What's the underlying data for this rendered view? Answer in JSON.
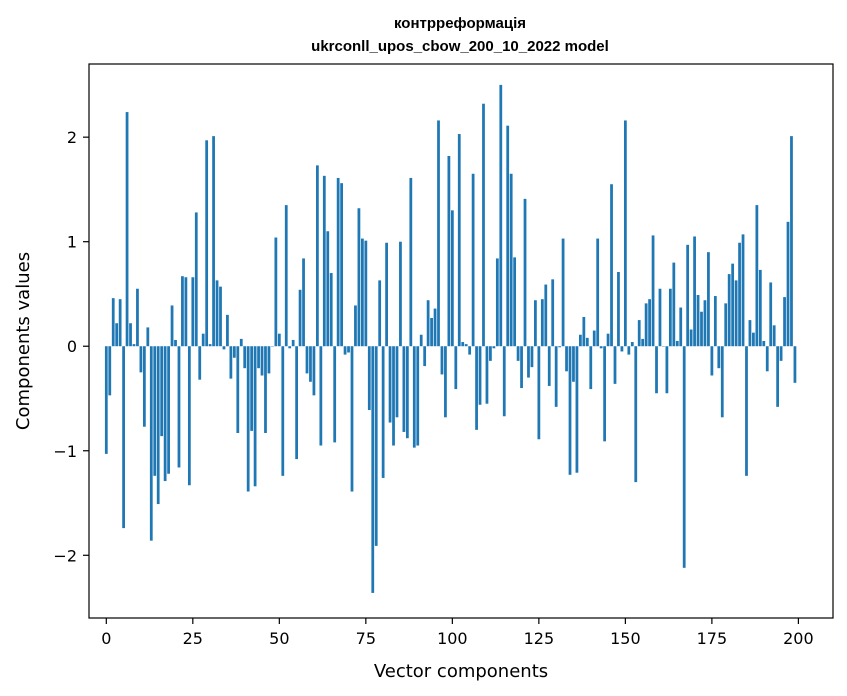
{
  "chart_data": {
    "type": "bar",
    "title": "контрреформація",
    "subtitle": "ukrconll_upos_cbow_200_10_2022 model",
    "xlabel": "Vector components",
    "ylabel": "Components values",
    "xlim": [
      -5,
      210
    ],
    "ylim": [
      -2.6,
      2.7
    ],
    "xticks": [
      0,
      25,
      50,
      75,
      100,
      125,
      150,
      175,
      200
    ],
    "xtick_labels": [
      "0",
      "25",
      "50",
      "75",
      "100",
      "125",
      "150",
      "175",
      "200"
    ],
    "yticks": [
      -2,
      -1,
      0,
      1,
      2
    ],
    "ytick_labels": [
      "−2",
      "−1",
      "0",
      "1",
      "2"
    ],
    "grid": false,
    "bar_color": "#1f77b4",
    "x": [
      0,
      1,
      2,
      3,
      4,
      5,
      6,
      7,
      8,
      9,
      10,
      11,
      12,
      13,
      14,
      15,
      16,
      17,
      18,
      19,
      20,
      21,
      22,
      23,
      24,
      25,
      26,
      27,
      28,
      29,
      30,
      31,
      32,
      33,
      34,
      35,
      36,
      37,
      38,
      39,
      40,
      41,
      42,
      43,
      44,
      45,
      46,
      47,
      48,
      49,
      50,
      51,
      52,
      53,
      54,
      55,
      56,
      57,
      58,
      59,
      60,
      61,
      62,
      63,
      64,
      65,
      66,
      67,
      68,
      69,
      70,
      71,
      72,
      73,
      74,
      75,
      76,
      77,
      78,
      79,
      80,
      81,
      82,
      83,
      84,
      85,
      86,
      87,
      88,
      89,
      90,
      91,
      92,
      93,
      94,
      95,
      96,
      97,
      98,
      99,
      100,
      101,
      102,
      103,
      104,
      105,
      106,
      107,
      108,
      109,
      110,
      111,
      112,
      113,
      114,
      115,
      116,
      117,
      118,
      119,
      120,
      121,
      122,
      123,
      124,
      125,
      126,
      127,
      128,
      129,
      130,
      131,
      132,
      133,
      134,
      135,
      136,
      137,
      138,
      139,
      140,
      141,
      142,
      143,
      144,
      145,
      146,
      147,
      148,
      149,
      150,
      151,
      152,
      153,
      154,
      155,
      156,
      157,
      158,
      159,
      160,
      161,
      162,
      163,
      164,
      165,
      166,
      167,
      168,
      169,
      170,
      171,
      172,
      173,
      174,
      175,
      176,
      177,
      178,
      179,
      180,
      181,
      182,
      183,
      184,
      185,
      186,
      187,
      188,
      189,
      190,
      191,
      192,
      193,
      194,
      195,
      196,
      197,
      198,
      199
    ],
    "values": [
      -1.03,
      -0.47,
      0.46,
      0.22,
      0.45,
      -1.74,
      2.24,
      0.22,
      0.02,
      0.55,
      -0.25,
      -0.77,
      0.18,
      -1.86,
      -1.24,
      -1.51,
      -0.86,
      -1.29,
      -1.22,
      0.39,
      0.06,
      -1.16,
      0.67,
      0.66,
      -1.33,
      0.66,
      1.28,
      -0.32,
      0.12,
      1.97,
      0.02,
      2.01,
      0.63,
      0.57,
      -0.03,
      0.3,
      -0.31,
      -0.11,
      -0.83,
      0.07,
      -0.21,
      -1.39,
      -0.81,
      -1.34,
      -0.21,
      -0.28,
      -0.83,
      -0.26,
      0.0,
      1.04,
      0.12,
      -1.24,
      1.35,
      -0.02,
      0.06,
      -1.08,
      0.54,
      0.84,
      -0.26,
      -0.34,
      -0.47,
      1.73,
      -0.95,
      1.63,
      1.1,
      0.7,
      -0.92,
      1.61,
      1.56,
      -0.08,
      -0.06,
      -1.39,
      0.39,
      1.32,
      1.03,
      1.01,
      -0.61,
      -2.36,
      -1.91,
      0.63,
      -1.26,
      0.99,
      -0.73,
      -0.95,
      -0.68,
      1.0,
      -0.82,
      -0.88,
      1.61,
      -0.97,
      -0.95,
      0.11,
      -0.19,
      0.44,
      0.27,
      0.36,
      2.16,
      -0.27,
      -0.68,
      1.82,
      1.3,
      -0.41,
      2.03,
      0.04,
      0.02,
      -0.08,
      1.65,
      -0.8,
      -0.56,
      2.32,
      -0.55,
      -0.14,
      -0.02,
      0.84,
      2.5,
      -0.67,
      2.11,
      1.65,
      0.85,
      -0.14,
      -0.4,
      1.41,
      -0.3,
      -0.2,
      0.44,
      -0.89,
      0.45,
      0.59,
      -0.38,
      0.64,
      -0.58,
      -0.01,
      1.03,
      -0.24,
      -1.23,
      -0.34,
      -1.21,
      0.11,
      0.28,
      0.08,
      -0.41,
      0.15,
      1.03,
      -0.02,
      -0.91,
      0.12,
      1.55,
      -0.36,
      0.71,
      -0.05,
      2.16,
      -0.08,
      0.04,
      -1.3,
      0.25,
      0.07,
      0.41,
      0.45,
      1.06,
      -0.45,
      0.55,
      0.0,
      -0.45,
      0.55,
      0.8,
      0.05,
      0.37,
      -2.12,
      0.97,
      0.16,
      1.05,
      0.49,
      0.33,
      0.44,
      0.9,
      -0.28,
      0.48,
      -0.21,
      -0.68,
      0.41,
      0.69,
      0.79,
      0.63,
      0.99,
      1.07,
      -1.24,
      0.25,
      0.13,
      1.35,
      0.73,
      0.05,
      -0.24,
      0.61,
      0.2,
      -0.58,
      -0.14,
      0.47,
      1.19,
      2.01,
      -0.35
    ]
  }
}
